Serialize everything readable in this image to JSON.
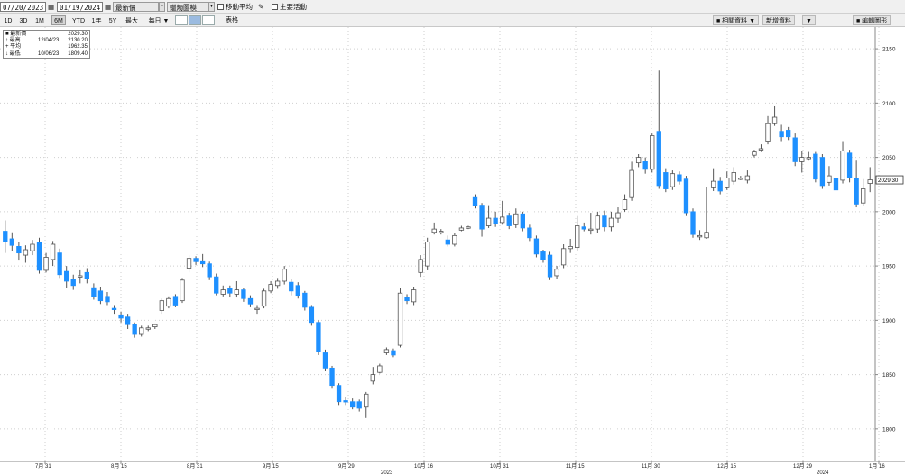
{
  "toolbar": {
    "start_date": "07/20/2023",
    "end_date": "01/19/2024",
    "price_type": "最新價",
    "chart_type": "蠟燭圖模",
    "moving_average_label": "移動平均",
    "key_events_label": "主要活動",
    "right_buttons": [
      "■ 相關資料 ▼",
      "新增資料",
      "▼",
      "■ 編輯圖形"
    ],
    "ranges": [
      "1D",
      "3D",
      "1M",
      "6M",
      "YTD",
      "1年",
      "5Y",
      "最大",
      "每日 ▼"
    ],
    "active_range": "6M",
    "table_label": "表格"
  },
  "legend": [
    {
      "key": "■ 最新價",
      "date": "",
      "value": "2029.30"
    },
    {
      "key": "↑ 最高",
      "date": "12/04/23",
      "value": "2130.20"
    },
    {
      "key": "+ 平均",
      "date": "",
      "value": "1962.35"
    },
    {
      "key": "↓ 最低",
      "date": "10/06/23",
      "value": "1809.40"
    }
  ],
  "last_price_tag": "2029.30",
  "colors": {
    "up_body": "#ffffff",
    "up_stroke": "#555555",
    "down_body": "#1e90ff",
    "down_stroke": "#1e90ff",
    "wick": "#555555",
    "grid": "#cfcfcf"
  },
  "chart_data": {
    "type": "candlestick",
    "title": "",
    "ylim": [
      1770,
      2170
    ],
    "y_ticks": [
      1800,
      1850,
      1900,
      1950,
      2000,
      2050,
      2100,
      2150
    ],
    "grid": true,
    "x_tick_labels": [
      "7月 31",
      "8月 15",
      "8月 31",
      "9月 15",
      "9月 29",
      "10月 16",
      "10月 31",
      "11月 15",
      "11月 30",
      "12月 15",
      "12月 29",
      "1月 16"
    ],
    "year_labels": [
      "2023",
      "2024"
    ],
    "last_value": 2029.3,
    "candles": [
      {
        "o": 1982,
        "c": 1972,
        "h": 1992,
        "l": 1962
      },
      {
        "o": 1975,
        "c": 1969,
        "h": 1981,
        "l": 1964
      },
      {
        "o": 1968,
        "c": 1962,
        "h": 1972,
        "l": 1955
      },
      {
        "o": 1960,
        "c": 1965,
        "h": 1969,
        "l": 1953
      },
      {
        "o": 1964,
        "c": 1970,
        "h": 1974,
        "l": 1960
      },
      {
        "o": 1972,
        "c": 1946,
        "h": 1976,
        "l": 1943
      },
      {
        "o": 1946,
        "c": 1958,
        "h": 1962,
        "l": 1944
      },
      {
        "o": 1956,
        "c": 1970,
        "h": 1973,
        "l": 1950
      },
      {
        "o": 1962,
        "c": 1942,
        "h": 1966,
        "l": 1939
      },
      {
        "o": 1945,
        "c": 1936,
        "h": 1950,
        "l": 1930
      },
      {
        "o": 1938,
        "c": 1932,
        "h": 1942,
        "l": 1928
      },
      {
        "o": 1940,
        "c": 1941,
        "h": 1946,
        "l": 1934
      },
      {
        "o": 1944,
        "c": 1938,
        "h": 1948,
        "l": 1934
      },
      {
        "o": 1930,
        "c": 1922,
        "h": 1934,
        "l": 1919
      },
      {
        "o": 1927,
        "c": 1918,
        "h": 1931,
        "l": 1915
      },
      {
        "o": 1922,
        "c": 1917,
        "h": 1926,
        "l": 1914
      },
      {
        "o": 1911,
        "c": 1910,
        "h": 1914,
        "l": 1906
      },
      {
        "o": 1905,
        "c": 1902,
        "h": 1908,
        "l": 1898
      },
      {
        "o": 1903,
        "c": 1896,
        "h": 1906,
        "l": 1892
      },
      {
        "o": 1896,
        "c": 1887,
        "h": 1898,
        "l": 1884
      },
      {
        "o": 1887,
        "c": 1893,
        "h": 1895,
        "l": 1885
      },
      {
        "o": 1892,
        "c": 1893,
        "h": 1895,
        "l": 1890
      },
      {
        "o": 1894,
        "c": 1896,
        "h": 1897,
        "l": 1892
      },
      {
        "o": 1909,
        "c": 1918,
        "h": 1920,
        "l": 1906
      },
      {
        "o": 1913,
        "c": 1920,
        "h": 1922,
        "l": 1911
      },
      {
        "o": 1922,
        "c": 1914,
        "h": 1924,
        "l": 1912
      },
      {
        "o": 1918,
        "c": 1937,
        "h": 1939,
        "l": 1916
      },
      {
        "o": 1948,
        "c": 1957,
        "h": 1960,
        "l": 1944
      },
      {
        "o": 1957,
        "c": 1954,
        "h": 1959,
        "l": 1951
      },
      {
        "o": 1954,
        "c": 1952,
        "h": 1961,
        "l": 1949
      },
      {
        "o": 1952,
        "c": 1940,
        "h": 1954,
        "l": 1937
      },
      {
        "o": 1940,
        "c": 1925,
        "h": 1943,
        "l": 1923
      },
      {
        "o": 1924,
        "c": 1928,
        "h": 1932,
        "l": 1922
      },
      {
        "o": 1929,
        "c": 1925,
        "h": 1932,
        "l": 1921
      },
      {
        "o": 1924,
        "c": 1928,
        "h": 1936,
        "l": 1921
      },
      {
        "o": 1928,
        "c": 1920,
        "h": 1930,
        "l": 1917
      },
      {
        "o": 1920,
        "c": 1915,
        "h": 1923,
        "l": 1912
      },
      {
        "o": 1910,
        "c": 1911,
        "h": 1914,
        "l": 1906
      },
      {
        "o": 1913,
        "c": 1927,
        "h": 1929,
        "l": 1911
      },
      {
        "o": 1927,
        "c": 1933,
        "h": 1936,
        "l": 1925
      },
      {
        "o": 1932,
        "c": 1936,
        "h": 1939,
        "l": 1929
      },
      {
        "o": 1936,
        "c": 1947,
        "h": 1950,
        "l": 1933
      },
      {
        "o": 1935,
        "c": 1927,
        "h": 1938,
        "l": 1923
      },
      {
        "o": 1932,
        "c": 1923,
        "h": 1935,
        "l": 1920
      },
      {
        "o": 1925,
        "c": 1912,
        "h": 1927,
        "l": 1909
      },
      {
        "o": 1912,
        "c": 1898,
        "h": 1914,
        "l": 1895
      },
      {
        "o": 1898,
        "c": 1871,
        "h": 1900,
        "l": 1868
      },
      {
        "o": 1870,
        "c": 1856,
        "h": 1873,
        "l": 1853
      },
      {
        "o": 1856,
        "c": 1840,
        "h": 1858,
        "l": 1837
      },
      {
        "o": 1840,
        "c": 1825,
        "h": 1842,
        "l": 1822
      },
      {
        "o": 1826,
        "c": 1825,
        "h": 1829,
        "l": 1822
      },
      {
        "o": 1825,
        "c": 1820,
        "h": 1828,
        "l": 1818
      },
      {
        "o": 1825,
        "c": 1819,
        "h": 1827,
        "l": 1816
      },
      {
        "o": 1820,
        "c": 1832,
        "h": 1834,
        "l": 1810
      },
      {
        "o": 1844,
        "c": 1850,
        "h": 1857,
        "l": 1841
      },
      {
        "o": 1852,
        "c": 1858,
        "h": 1860,
        "l": 1851
      },
      {
        "o": 1870,
        "c": 1873,
        "h": 1875,
        "l": 1868
      },
      {
        "o": 1872,
        "c": 1868,
        "h": 1874,
        "l": 1866
      },
      {
        "o": 1877,
        "c": 1925,
        "h": 1930,
        "l": 1875
      },
      {
        "o": 1921,
        "c": 1918,
        "h": 1924,
        "l": 1915
      },
      {
        "o": 1917,
        "c": 1928,
        "h": 1931,
        "l": 1914
      },
      {
        "o": 1944,
        "c": 1956,
        "h": 1960,
        "l": 1940
      },
      {
        "o": 1950,
        "c": 1972,
        "h": 1976,
        "l": 1946
      },
      {
        "o": 1981,
        "c": 1984,
        "h": 1990,
        "l": 1979
      },
      {
        "o": 1982,
        "c": 1982,
        "h": 1984,
        "l": 1979
      },
      {
        "o": 1974,
        "c": 1970,
        "h": 1978,
        "l": 1968
      },
      {
        "o": 1970,
        "c": 1978,
        "h": 1980,
        "l": 1968
      },
      {
        "o": 1983,
        "c": 1985,
        "h": 1987,
        "l": 1982
      },
      {
        "o": 1985,
        "c": 1986,
        "h": 1987,
        "l": 1984
      },
      {
        "o": 2013,
        "c": 2006,
        "h": 2016,
        "l": 2003
      },
      {
        "o": 2006,
        "c": 1984,
        "h": 2008,
        "l": 1977
      },
      {
        "o": 1987,
        "c": 1994,
        "h": 2006,
        "l": 1985
      },
      {
        "o": 1994,
        "c": 1989,
        "h": 2000,
        "l": 1986
      },
      {
        "o": 1990,
        "c": 1995,
        "h": 2010,
        "l": 1988
      },
      {
        "o": 1996,
        "c": 1987,
        "h": 1999,
        "l": 1984
      },
      {
        "o": 1988,
        "c": 1998,
        "h": 2003,
        "l": 1985
      },
      {
        "o": 1998,
        "c": 1985,
        "h": 2000,
        "l": 1982
      },
      {
        "o": 1985,
        "c": 1976,
        "h": 1988,
        "l": 1973
      },
      {
        "o": 1975,
        "c": 1961,
        "h": 1978,
        "l": 1958
      },
      {
        "o": 1963,
        "c": 1956,
        "h": 1965,
        "l": 1953
      },
      {
        "o": 1960,
        "c": 1940,
        "h": 1963,
        "l": 1937
      },
      {
        "o": 1941,
        "c": 1947,
        "h": 1950,
        "l": 1938
      },
      {
        "o": 1951,
        "c": 1966,
        "h": 1970,
        "l": 1948
      },
      {
        "o": 1966,
        "c": 1968,
        "h": 1975,
        "l": 1962
      },
      {
        "o": 1967,
        "c": 1987,
        "h": 1996,
        "l": 1964
      },
      {
        "o": 1986,
        "c": 1984,
        "h": 1990,
        "l": 1982
      },
      {
        "o": 1984,
        "c": 1984,
        "h": 1999,
        "l": 1979
      },
      {
        "o": 1984,
        "c": 1996,
        "h": 2000,
        "l": 1980
      },
      {
        "o": 1996,
        "c": 1986,
        "h": 2001,
        "l": 1982
      },
      {
        "o": 1986,
        "c": 1994,
        "h": 2000,
        "l": 1982
      },
      {
        "o": 1994,
        "c": 1999,
        "h": 2004,
        "l": 1990
      },
      {
        "o": 2002,
        "c": 2011,
        "h": 2016,
        "l": 2000
      },
      {
        "o": 2013,
        "c": 2038,
        "h": 2046,
        "l": 2010
      },
      {
        "o": 2045,
        "c": 2050,
        "h": 2053,
        "l": 2041
      },
      {
        "o": 2046,
        "c": 2039,
        "h": 2050,
        "l": 2035
      },
      {
        "o": 2039,
        "c": 2070,
        "h": 2072,
        "l": 2036
      },
      {
        "o": 2074,
        "c": 2024,
        "h": 2130,
        "l": 2021
      },
      {
        "o": 2036,
        "c": 2021,
        "h": 2040,
        "l": 2018
      },
      {
        "o": 2023,
        "c": 2035,
        "h": 2038,
        "l": 2020
      },
      {
        "o": 2034,
        "c": 2028,
        "h": 2037,
        "l": 2025
      },
      {
        "o": 2030,
        "c": 1999,
        "h": 2033,
        "l": 1996
      },
      {
        "o": 2000,
        "c": 1979,
        "h": 2003,
        "l": 1976
      },
      {
        "o": 1978,
        "c": 1978,
        "h": 1983,
        "l": 1974
      },
      {
        "o": 1976,
        "c": 1981,
        "h": 2023,
        "l": 1975
      },
      {
        "o": 2022,
        "c": 2028,
        "h": 2040,
        "l": 2019
      },
      {
        "o": 2028,
        "c": 2019,
        "h": 2032,
        "l": 2016
      },
      {
        "o": 2022,
        "c": 2031,
        "h": 2037,
        "l": 2020
      },
      {
        "o": 2028,
        "c": 2036,
        "h": 2041,
        "l": 2025
      },
      {
        "o": 2031,
        "c": 2031,
        "h": 2033,
        "l": 2029
      },
      {
        "o": 2029,
        "c": 2033,
        "h": 2038,
        "l": 2026
      },
      {
        "o": 2052,
        "c": 2055,
        "h": 2057,
        "l": 2050
      },
      {
        "o": 2058,
        "c": 2058,
        "h": 2062,
        "l": 2055
      },
      {
        "o": 2065,
        "c": 2081,
        "h": 2088,
        "l": 2062
      },
      {
        "o": 2081,
        "c": 2087,
        "h": 2097,
        "l": 2079
      },
      {
        "o": 2074,
        "c": 2069,
        "h": 2080,
        "l": 2065
      },
      {
        "o": 2075,
        "c": 2069,
        "h": 2078,
        "l": 2066
      },
      {
        "o": 2068,
        "c": 2046,
        "h": 2072,
        "l": 2042
      },
      {
        "o": 2046,
        "c": 2050,
        "h": 2056,
        "l": 2036
      },
      {
        "o": 2050,
        "c": 2050,
        "h": 2055,
        "l": 2047
      },
      {
        "o": 2053,
        "c": 2030,
        "h": 2055,
        "l": 2027
      },
      {
        "o": 2050,
        "c": 2024,
        "h": 2053,
        "l": 2021
      },
      {
        "o": 2027,
        "c": 2033,
        "h": 2042,
        "l": 2024
      },
      {
        "o": 2031,
        "c": 2020,
        "h": 2034,
        "l": 2017
      },
      {
        "o": 2029,
        "c": 2056,
        "h": 2065,
        "l": 2026
      },
      {
        "o": 2054,
        "c": 2031,
        "h": 2057,
        "l": 2027
      },
      {
        "o": 2031,
        "c": 2007,
        "h": 2047,
        "l": 2004
      },
      {
        "o": 2008,
        "c": 2021,
        "h": 2030,
        "l": 2005
      },
      {
        "o": 2026,
        "c": 2029.3,
        "h": 2041,
        "l": 2018
      }
    ]
  }
}
